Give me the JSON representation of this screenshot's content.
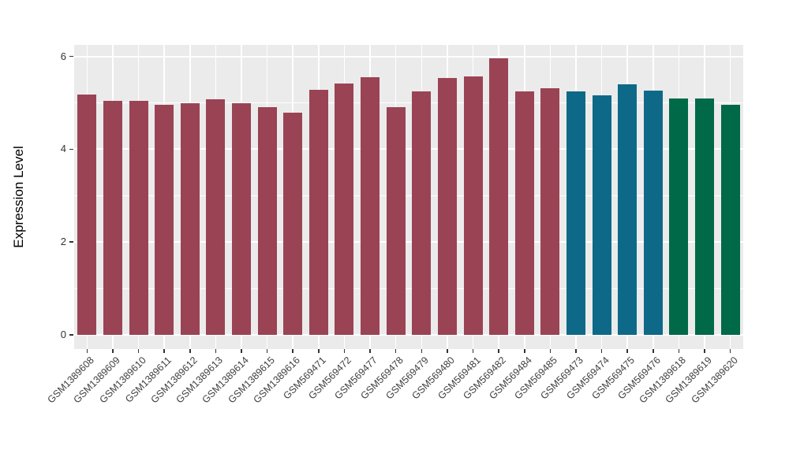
{
  "chart_data": {
    "type": "bar",
    "title": "",
    "xlabel": "",
    "ylabel": "Expression Level",
    "ylim": [
      0,
      6.25
    ],
    "y_major_ticks": [
      0,
      2,
      4,
      6
    ],
    "y_minor_gridlines": [
      1,
      3,
      5
    ],
    "grid": true,
    "legend": false,
    "panel_background": "#EBEBEB",
    "gridline_color": "#FFFFFF",
    "axis_text_color": "#404040",
    "categories": [
      "GSM1389608",
      "GSM1389609",
      "GSM1389610",
      "GSM1389611",
      "GSM1389612",
      "GSM1389613",
      "GSM1389614",
      "GSM1389615",
      "GSM1389616",
      "GSM569471",
      "GSM569472",
      "GSM569477",
      "GSM569478",
      "GSM569479",
      "GSM569480",
      "GSM569481",
      "GSM569482",
      "GSM569484",
      "GSM569485",
      "GSM569473",
      "GSM569474",
      "GSM569475",
      "GSM569476",
      "GSM1389618",
      "GSM1389619",
      "GSM1389620"
    ],
    "values": [
      5.18,
      5.05,
      5.04,
      4.96,
      5.0,
      5.08,
      5.0,
      4.9,
      4.79,
      5.28,
      5.42,
      5.56,
      4.9,
      5.24,
      5.53,
      5.57,
      5.96,
      5.25,
      5.32,
      5.25,
      5.17,
      5.4,
      5.26,
      5.09,
      5.1,
      4.96
    ],
    "groups": [
      "group-1",
      "group-1",
      "group-1",
      "group-1",
      "group-1",
      "group-1",
      "group-1",
      "group-1",
      "group-1",
      "group-1",
      "group-1",
      "group-1",
      "group-1",
      "group-1",
      "group-1",
      "group-1",
      "group-1",
      "group-1",
      "group-1",
      "group-2",
      "group-2",
      "group-2",
      "group-2",
      "group-3",
      "group-3",
      "group-3"
    ],
    "group_colors": {
      "group-1": "#9A4354",
      "group-2": "#0E6988",
      "group-3": "#006948"
    }
  }
}
